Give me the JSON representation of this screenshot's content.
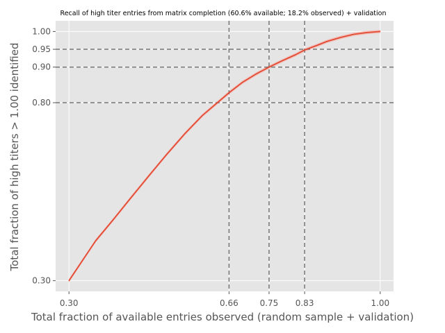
{
  "chart_data": {
    "type": "line",
    "title": "Recall of high titer entries from matrix completion (60.6% available; 18.2% observed) + validation",
    "xlabel": "Total fraction of available entries observed (random sample + validation)",
    "ylabel": "Total fraction of high titers > 1.00 identified",
    "xlim": [
      0.27,
      1.03
    ],
    "ylim": [
      0.27,
      1.03
    ],
    "xticks": [
      "0.30",
      "0.66",
      "0.75",
      "0.83",
      "1.00"
    ],
    "xtick_values": [
      0.3,
      0.66,
      0.75,
      0.83,
      1.0
    ],
    "yticks": [
      "0.30",
      "0.80",
      "0.90",
      "0.95",
      "1.00"
    ],
    "ytick_values": [
      0.3,
      0.8,
      0.9,
      0.95,
      1.0
    ],
    "grid": true,
    "reference_lines": {
      "vertical": [
        0.66,
        0.75,
        0.83
      ],
      "horizontal": [
        0.8,
        0.9,
        0.95
      ]
    },
    "series": [
      {
        "color": "#e24a33",
        "x": [
          0.3,
          0.33,
          0.36,
          0.4,
          0.44,
          0.48,
          0.52,
          0.56,
          0.6,
          0.63,
          0.66,
          0.69,
          0.72,
          0.75,
          0.78,
          0.81,
          0.83,
          0.86,
          0.88,
          0.91,
          0.94,
          0.97,
          1.0
        ],
        "y": [
          0.3,
          0.356,
          0.412,
          0.472,
          0.534,
          0.595,
          0.655,
          0.712,
          0.764,
          0.796,
          0.828,
          0.857,
          0.88,
          0.9,
          0.918,
          0.935,
          0.948,
          0.962,
          0.972,
          0.983,
          0.992,
          0.997,
          1.0
        ]
      }
    ],
    "band_color": "#f4b8b0",
    "ref_line_color": "#777777",
    "background_color": "#e5e5e5",
    "grid_color": "#ffffff"
  }
}
